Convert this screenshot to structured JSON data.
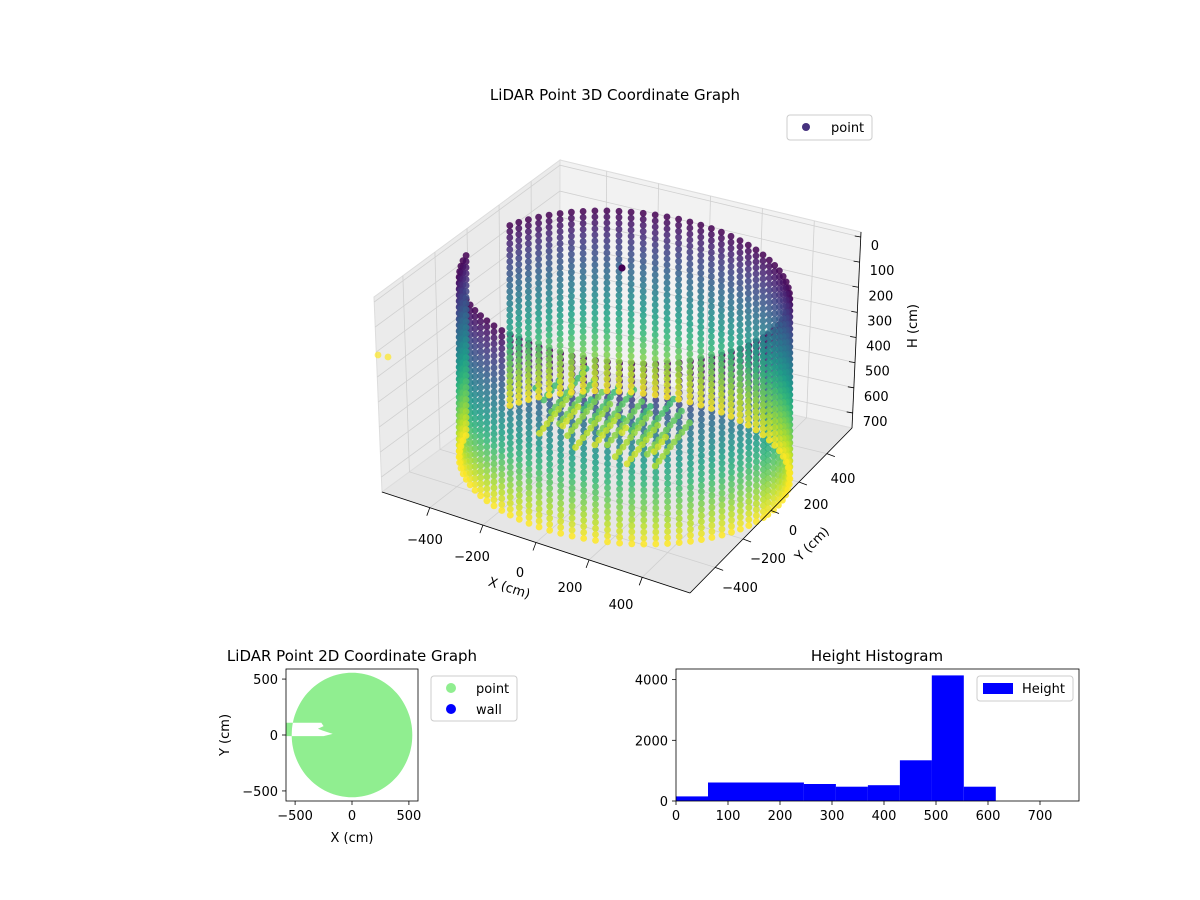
{
  "chart_data": [
    {
      "type": "scatter",
      "projection": "3d",
      "title": "LiDAR Point 3D Coordinate Graph",
      "xlabel": "X (cm)",
      "ylabel": "Y (cm)",
      "zlabel": "H (cm)",
      "xticks": [
        "−400",
        "−200",
        "0",
        "200",
        "400"
      ],
      "yticks": [
        "400",
        "200",
        "0",
        "−200",
        "−400"
      ],
      "zticks": [
        "0",
        "100",
        "200",
        "300",
        "400",
        "500",
        "600",
        "700"
      ],
      "legend": [
        "point"
      ],
      "legend_position": "top-right",
      "colormap": "viridis",
      "z_inverted": true,
      "shape": "cylindrical wall of points, radius about 540 cm, heights from about 0 to 700 cm, with an open wedge toward negative X"
    },
    {
      "type": "scatter",
      "title": "LiDAR Point 2D Coordinate Graph",
      "xlabel": "X (cm)",
      "ylabel": "Y (cm)",
      "xticks": [
        "−500",
        "0",
        "500"
      ],
      "yticks": [
        "500",
        "0",
        "−500"
      ],
      "xlim": [
        -580,
        580
      ],
      "ylim": [
        -590,
        590
      ],
      "series": [
        {
          "name": "point",
          "color": "#90ee90"
        },
        {
          "name": "wall",
          "color": "#0000ff"
        }
      ],
      "legend_position": "outside-right"
    },
    {
      "type": "bar",
      "title": "Height Histogram",
      "xticks": [
        "0",
        "100",
        "200",
        "300",
        "400",
        "500",
        "600",
        "700"
      ],
      "yticks": [
        "0",
        "2000",
        "4000"
      ],
      "xlim": [
        0,
        775
      ],
      "ylim": [
        0,
        4350
      ],
      "bin_edges": [
        0,
        61.5,
        123,
        184.5,
        246,
        307.5,
        369,
        430.5,
        492,
        553.5,
        615,
        676.5,
        738
      ],
      "values": [
        150,
        610,
        610,
        610,
        560,
        470,
        520,
        1340,
        4140,
        470,
        0,
        0
      ],
      "series": [
        {
          "name": "Height",
          "color": "#0000ff"
        }
      ],
      "legend_position": "top-right"
    }
  ]
}
